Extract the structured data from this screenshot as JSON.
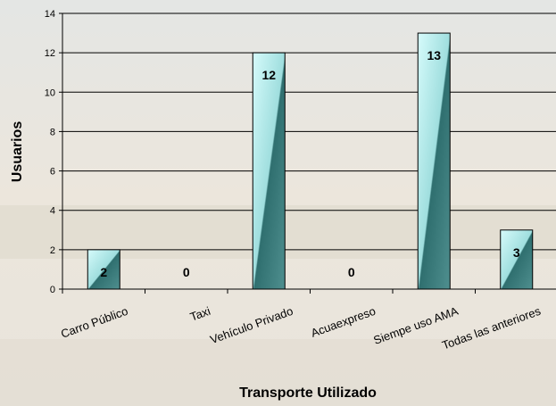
{
  "chart_data": {
    "type": "bar",
    "x_label": "Transporte Utilizado",
    "y_label": "Usuarios",
    "categories": [
      "Carro Público",
      "Taxi",
      "Vehículo Privado",
      "Acuaexpreso",
      "Siempe uso AMA",
      "Todas las anteriores"
    ],
    "values": [
      2,
      0,
      12,
      0,
      13,
      3
    ],
    "color": "#2f6f6f",
    "ylim": [
      0,
      14
    ],
    "yticks": [
      0,
      2,
      4,
      6,
      8,
      10,
      12,
      14
    ],
    "grid": true
  }
}
